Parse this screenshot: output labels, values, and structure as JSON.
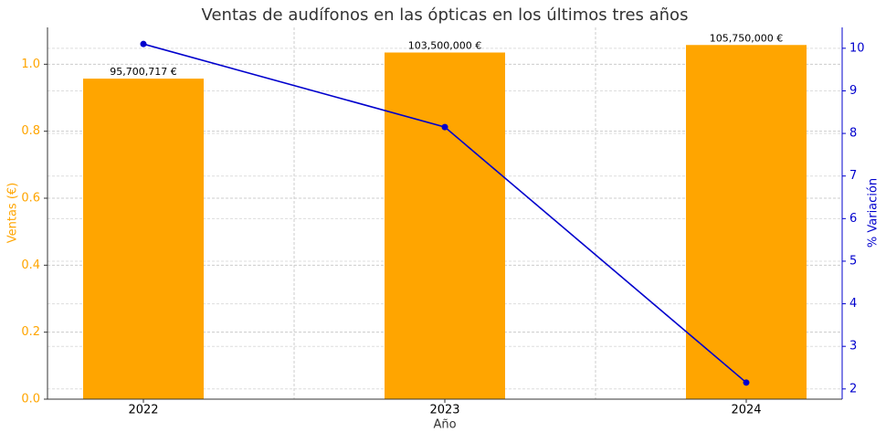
{
  "chart_data": {
    "type": "combo",
    "title": "Ventas de audífonos en las ópticas en los últimos tres años",
    "xlabel": "Año",
    "ylabel": "Ventas (€)",
    "y2label": "% Variación",
    "categories": [
      "2022",
      "2023",
      "2024"
    ],
    "series": [
      {
        "type": "bar",
        "color": "#ffa500",
        "values": [
          95700717,
          103500000,
          105750000
        ],
        "value_labels": [
          "95,700,717 €",
          "103,500,000 €",
          "105,750,000 €"
        ]
      },
      {
        "type": "line",
        "color": "#0000cd",
        "axis": "y2",
        "values": [
          10.1,
          8.15,
          2.15
        ]
      }
    ],
    "ylim": [
      0,
      111000000
    ],
    "yticks": [
      {
        "value": 0,
        "label": "0.0"
      },
      {
        "value": 20000000,
        "label": "0.2"
      },
      {
        "value": 40000000,
        "label": "0.4"
      },
      {
        "value": 60000000,
        "label": "0.6"
      },
      {
        "value": 80000000,
        "label": "0.8"
      },
      {
        "value": 100000000,
        "label": "1.0"
      }
    ],
    "y2lim": [
      1.76,
      10.49
    ],
    "y2ticks": [
      2,
      3,
      4,
      5,
      6,
      7,
      8,
      9,
      10
    ],
    "grid": true
  }
}
